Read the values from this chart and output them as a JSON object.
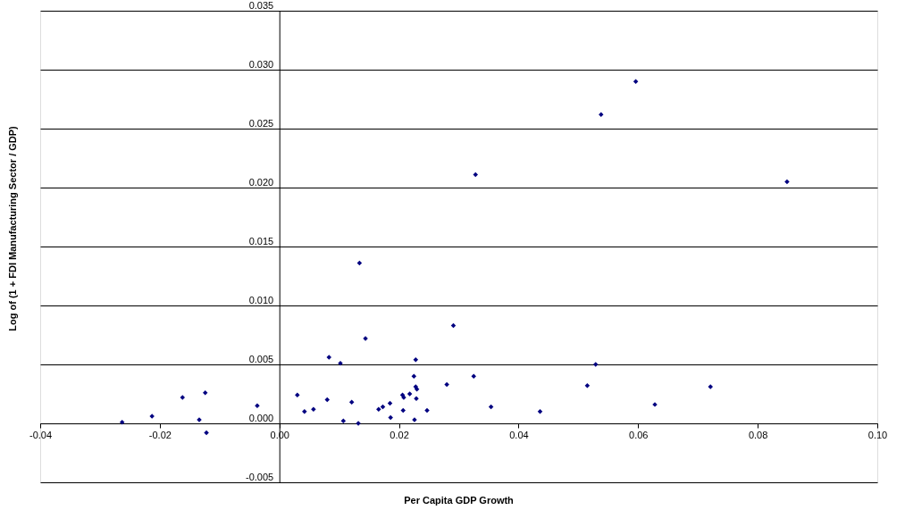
{
  "chart_data": {
    "type": "scatter",
    "xlabel": "Per Capita GDP Growth",
    "ylabel": "Log of (1 + FDI Manufacturing Sector / GDP)",
    "marker": "diamond",
    "grid": "y",
    "xlim": [
      -0.04,
      0.1
    ],
    "ylim": [
      -0.005,
      0.035
    ],
    "xticks": [
      {
        "value": -0.04,
        "label": "-0.04"
      },
      {
        "value": -0.02,
        "label": "-0.02"
      },
      {
        "value": 0,
        "label": "0.00"
      },
      {
        "value": 0.02,
        "label": "0.02"
      },
      {
        "value": 0.04,
        "label": "0.04"
      },
      {
        "value": 0.06,
        "label": "0.06"
      },
      {
        "value": 0.08,
        "label": "0.08"
      },
      {
        "value": 0.1,
        "label": "0.10"
      }
    ],
    "yticks": [
      {
        "value": -0.005,
        "label": "-0.005"
      },
      {
        "value": 0,
        "label": "0.000"
      },
      {
        "value": 0.005,
        "label": "0.005"
      },
      {
        "value": 0.01,
        "label": "0.010"
      },
      {
        "value": 0.015,
        "label": "0.015"
      },
      {
        "value": 0.02,
        "label": "0.020"
      },
      {
        "value": 0.025,
        "label": "0.025"
      },
      {
        "value": 0.03,
        "label": "0.030"
      },
      {
        "value": 0.035,
        "label": "0.035"
      }
    ],
    "series": [
      {
        "color": "#000080",
        "x": [
          -0.0263,
          -0.0213,
          -0.0162,
          -0.0134,
          -0.0124,
          -0.0122,
          -0.0037,
          0.003,
          0.0042,
          0.0057,
          0.0083,
          0.008,
          0.0102,
          0.0107,
          0.0121,
          0.0132,
          0.0144,
          0.0134,
          0.0166,
          0.0173,
          0.0185,
          0.0186,
          0.0206,
          0.0208,
          0.0207,
          0.0218,
          0.0228,
          0.0225,
          0.0228,
          0.023,
          0.0229,
          0.0226,
          0.0247,
          0.028,
          0.0325,
          0.0354,
          0.0291,
          0.0328,
          0.0436,
          0.0515,
          0.0529,
          0.0538,
          0.0596,
          0.0628,
          0.0721,
          0.0849
        ],
        "values": [
          0.0001,
          0.0006,
          0.0022,
          0.0003,
          0.0026,
          -0.0008,
          0.0015,
          0.0024,
          0.001,
          0.0012,
          0.0056,
          0.002,
          0.0051,
          0.0002,
          0.0018,
          0.0,
          0.0072,
          0.0136,
          0.0012,
          0.0014,
          0.0017,
          0.0005,
          0.0024,
          0.0022,
          0.0011,
          0.0025,
          0.0054,
          0.004,
          0.0031,
          0.0029,
          0.0021,
          0.0003,
          0.0011,
          0.0033,
          0.004,
          0.0014,
          0.0083,
          0.0211,
          0.001,
          0.0032,
          0.005,
          0.0262,
          0.029,
          0.0016,
          0.0031,
          0.0205
        ]
      }
    ]
  }
}
